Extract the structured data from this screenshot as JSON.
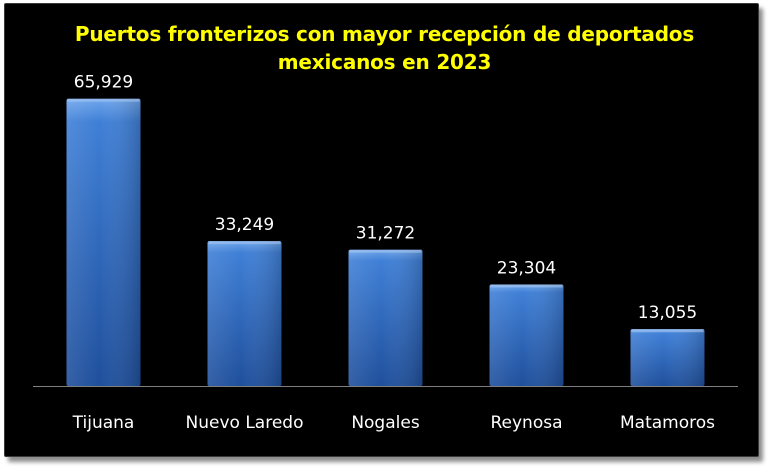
{
  "chart_data": {
    "type": "bar",
    "title_lines": [
      "Puertos fronterizos con mayor recepción de deportados",
      "mexicanos en 2023"
    ],
    "categories": [
      "Tijuana",
      "Nuevo Laredo",
      "Nogales",
      "Reynosa",
      "Matamoros"
    ],
    "values": [
      65929,
      33249,
      31272,
      23304,
      13055
    ],
    "value_labels": [
      "65,929",
      "33,249",
      "31,272",
      "23,304",
      "13,055"
    ],
    "xlabel": "",
    "ylabel": "",
    "ylim": [
      0,
      70000
    ],
    "grid": false,
    "legend": "none",
    "colors": {
      "background": "#000000",
      "title": "#ffff00",
      "bar_top": "#6fa6ec",
      "bar_mid": "#3f7fd6",
      "bar_bottom": "#1f4f9c",
      "text": "#ffffff",
      "axis": "#7f7f7f"
    }
  }
}
